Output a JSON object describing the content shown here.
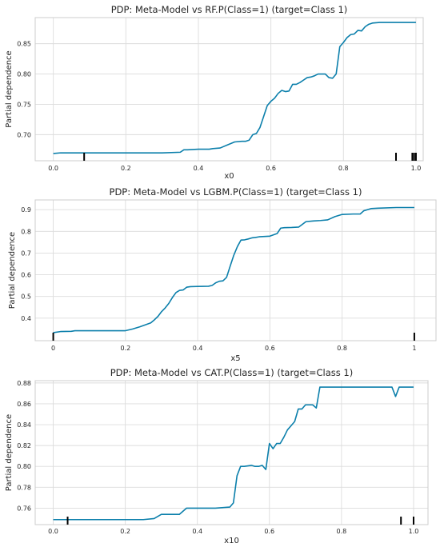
{
  "figure": {
    "line_color": "#0b7fab",
    "grid_color": "#dcdcdc",
    "background": "#ffffff"
  },
  "chart_data": [
    {
      "type": "line",
      "title": "PDP: Meta-Model vs RF.P(Class=1) (target=Class 1)",
      "xlabel": "x0",
      "ylabel": "Partial dependence",
      "xlim": [
        -0.05,
        1.02
      ],
      "ylim": [
        0.657,
        0.893
      ],
      "xticks": [
        0.0,
        0.2,
        0.4,
        0.6,
        0.8,
        1.0
      ],
      "xtick_labels": [
        "0.0",
        "0.2",
        "0.4",
        "0.6",
        "0.8",
        "1.0"
      ],
      "yticks": [
        0.7,
        0.75,
        0.8,
        0.85
      ],
      "ytick_labels": [
        "0.70",
        "0.75",
        "0.80",
        "0.85"
      ],
      "grid": true,
      "series": [
        {
          "x": [
            0.0,
            0.02,
            0.1,
            0.2,
            0.3,
            0.35,
            0.36,
            0.37,
            0.4,
            0.43,
            0.44,
            0.46,
            0.48,
            0.5,
            0.52,
            0.53,
            0.54,
            0.55,
            0.56,
            0.57,
            0.58,
            0.59,
            0.6,
            0.61,
            0.62,
            0.63,
            0.64,
            0.65,
            0.66,
            0.67,
            0.68,
            0.69,
            0.7,
            0.71,
            0.72,
            0.73,
            0.74,
            0.75,
            0.76,
            0.77,
            0.78,
            0.79,
            0.8,
            0.81,
            0.82,
            0.83,
            0.84,
            0.85,
            0.86,
            0.87,
            0.88,
            0.9,
            0.95,
            1.0
          ],
          "y": [
            0.669,
            0.67,
            0.67,
            0.67,
            0.67,
            0.671,
            0.675,
            0.675,
            0.676,
            0.676,
            0.677,
            0.678,
            0.683,
            0.688,
            0.689,
            0.689,
            0.691,
            0.7,
            0.702,
            0.712,
            0.73,
            0.748,
            0.755,
            0.76,
            0.768,
            0.773,
            0.771,
            0.772,
            0.783,
            0.783,
            0.786,
            0.79,
            0.794,
            0.795,
            0.797,
            0.8,
            0.8,
            0.8,
            0.794,
            0.793,
            0.8,
            0.845,
            0.852,
            0.86,
            0.865,
            0.866,
            0.872,
            0.871,
            0.878,
            0.882,
            0.884,
            0.885,
            0.885,
            0.885
          ]
        }
      ],
      "rug": [
        0.085,
        0.945,
        0.99,
        0.995,
        1.0
      ]
    },
    {
      "type": "line",
      "title": "PDP: Meta-Model vs LGBM.P(Class=1) (target=Class 1)",
      "xlabel": "x5",
      "ylabel": "Partial dependence",
      "xlim": [
        -0.05,
        1.06
      ],
      "ylim": [
        0.296,
        0.945
      ],
      "xticks": [
        0.0,
        0.2,
        0.4,
        0.6,
        0.8,
        1.0
      ],
      "xtick_labels": [
        "0",
        "0.2",
        "0.4",
        "0.6",
        "0.8",
        "1"
      ],
      "yticks": [
        0.4,
        0.5,
        0.6,
        0.7,
        0.8,
        0.9
      ],
      "ytick_labels": [
        "0.4",
        "0.5",
        "0.6",
        "0.7",
        "0.8",
        "0.9"
      ],
      "grid": true,
      "series": [
        {
          "x": [
            0.0,
            0.02,
            0.05,
            0.06,
            0.1,
            0.15,
            0.2,
            0.22,
            0.24,
            0.26,
            0.27,
            0.28,
            0.29,
            0.3,
            0.31,
            0.32,
            0.33,
            0.34,
            0.35,
            0.36,
            0.37,
            0.38,
            0.4,
            0.43,
            0.44,
            0.45,
            0.46,
            0.47,
            0.48,
            0.49,
            0.5,
            0.51,
            0.52,
            0.53,
            0.54,
            0.55,
            0.56,
            0.57,
            0.58,
            0.6,
            0.62,
            0.63,
            0.64,
            0.66,
            0.68,
            0.7,
            0.72,
            0.74,
            0.76,
            0.78,
            0.8,
            0.83,
            0.84,
            0.85,
            0.86,
            0.88,
            0.9,
            0.95,
            1.0
          ],
          "y": [
            0.333,
            0.338,
            0.339,
            0.342,
            0.342,
            0.342,
            0.342,
            0.35,
            0.36,
            0.372,
            0.378,
            0.392,
            0.408,
            0.43,
            0.447,
            0.468,
            0.495,
            0.518,
            0.528,
            0.53,
            0.543,
            0.545,
            0.546,
            0.547,
            0.551,
            0.563,
            0.57,
            0.572,
            0.588,
            0.64,
            0.69,
            0.73,
            0.76,
            0.761,
            0.765,
            0.77,
            0.772,
            0.775,
            0.776,
            0.778,
            0.79,
            0.815,
            0.817,
            0.818,
            0.82,
            0.845,
            0.848,
            0.85,
            0.853,
            0.868,
            0.878,
            0.88,
            0.88,
            0.88,
            0.895,
            0.905,
            0.907,
            0.91,
            0.91
          ]
        }
      ],
      "rug": [
        0.0,
        1.0
      ]
    },
    {
      "type": "line",
      "title": "PDP: Meta-Model vs CAT.P(Class=1) (target=Class 1)",
      "xlabel": "x10",
      "ylabel": "Partial dependence",
      "xlim": [
        -0.05,
        1.04
      ],
      "ylim": [
        0.7442,
        0.8822
      ],
      "xticks": [
        0.0,
        0.2,
        0.4,
        0.6,
        0.8,
        1.0
      ],
      "xtick_labels": [
        "0.0",
        "0.2",
        "0.4",
        "0.6",
        "0.8",
        "1.0"
      ],
      "yticks": [
        0.76,
        0.78,
        0.8,
        0.82,
        0.84,
        0.86,
        0.88
      ],
      "ytick_labels": [
        "0.76",
        "0.78",
        "0.80",
        "0.82",
        "0.84",
        "0.86",
        "0.88"
      ],
      "grid": true,
      "series": [
        {
          "x": [
            0.0,
            0.1,
            0.2,
            0.25,
            0.28,
            0.3,
            0.35,
            0.37,
            0.4,
            0.45,
            0.49,
            0.5,
            0.51,
            0.52,
            0.53,
            0.55,
            0.56,
            0.57,
            0.58,
            0.59,
            0.6,
            0.61,
            0.62,
            0.63,
            0.64,
            0.65,
            0.66,
            0.67,
            0.68,
            0.69,
            0.7,
            0.72,
            0.73,
            0.74,
            0.75,
            0.8,
            0.9,
            0.93,
            0.94,
            0.95,
            0.96,
            1.0
          ],
          "y": [
            0.749,
            0.749,
            0.749,
            0.749,
            0.75,
            0.754,
            0.754,
            0.76,
            0.76,
            0.76,
            0.761,
            0.765,
            0.791,
            0.8,
            0.8,
            0.801,
            0.8,
            0.8,
            0.801,
            0.797,
            0.822,
            0.817,
            0.822,
            0.822,
            0.828,
            0.835,
            0.839,
            0.843,
            0.855,
            0.855,
            0.859,
            0.859,
            0.856,
            0.876,
            0.876,
            0.876,
            0.876,
            0.876,
            0.876,
            0.867,
            0.876,
            0.876
          ]
        }
      ],
      "rug": [
        0.04,
        0.965,
        1.0
      ]
    }
  ]
}
